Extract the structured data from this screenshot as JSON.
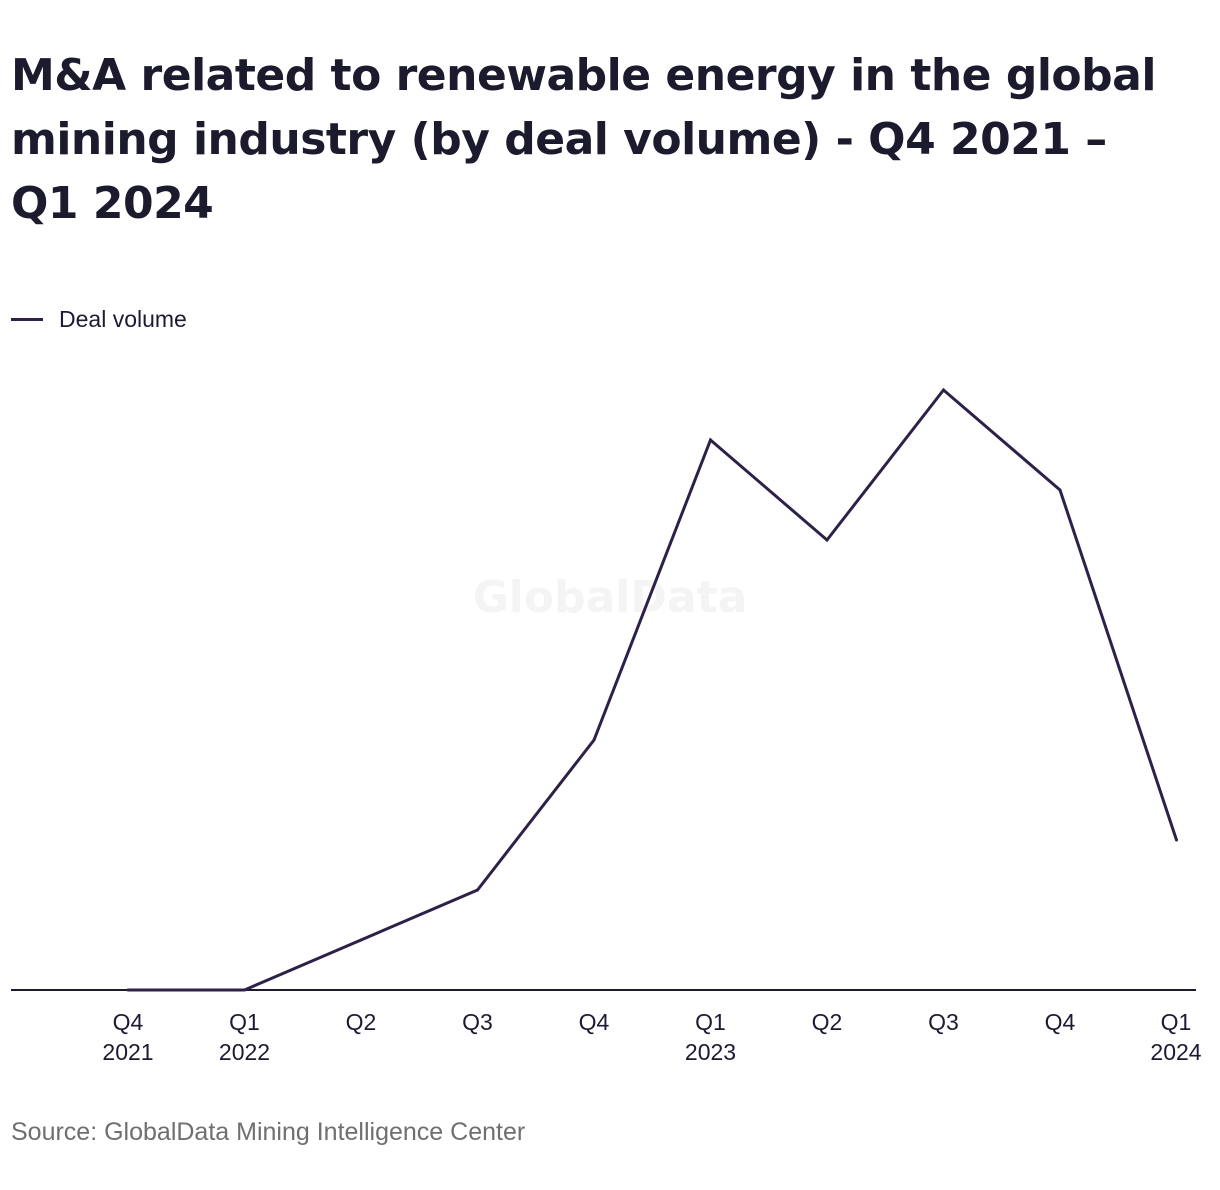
{
  "title": "M&A related to renewable energy in the global mining industry (by deal volume) - Q4 2021 – Q1 2024",
  "source": "Source: GlobalData Mining Intelligence Center",
  "watermark": "GlobalData",
  "colors": {
    "line": "#2e2149",
    "axis": "#1c1b2e",
    "text": "#1f1a33",
    "source": "#6f6f6f"
  },
  "chart_data": {
    "type": "line",
    "title": "M&A related to renewable energy in the global mining industry (by deal volume) - Q4 2021 – Q1 2024",
    "xlabel": "",
    "ylabel": "",
    "categories": [
      [
        "Q4",
        "2021"
      ],
      [
        "Q1",
        "2022"
      ],
      [
        "Q2",
        ""
      ],
      [
        "Q3",
        ""
      ],
      [
        "Q4",
        ""
      ],
      [
        "Q1",
        "2023"
      ],
      [
        "Q2",
        ""
      ],
      [
        "Q3",
        ""
      ],
      [
        "Q4",
        ""
      ],
      [
        "Q1",
        "2024"
      ]
    ],
    "series": [
      {
        "name": "Deal volume",
        "values": [
          0,
          0,
          1,
          2,
          5,
          11,
          9,
          12,
          10,
          3
        ]
      }
    ],
    "ylim": [
      0,
      12.6
    ],
    "grid": false,
    "legend": "top-left"
  }
}
